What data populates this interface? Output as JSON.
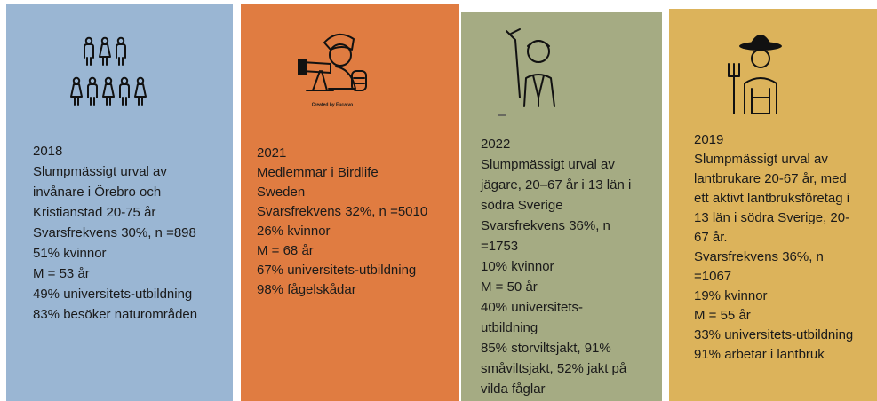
{
  "panels": [
    {
      "lines": [
        "2018",
        "Slumpmässigt urval av",
        "invånare i Örebro och",
        "Kristianstad 20-75 år",
        "Svarsfrekvens 30%, n =898",
        "51% kvinnor",
        "M = 53 år",
        "49% universitets-utbildning",
        "83% besöker naturområden"
      ]
    },
    {
      "credit": "Created by Eucalvo",
      "lines": [
        "2021",
        "Medlemmar i Birdlife",
        "Sweden",
        "Svarsfrekvens 32%, n =5010",
        "26% kvinnor",
        "M = 68 år",
        "67% universitets-utbildning",
        "98% fågelskådar"
      ]
    },
    {
      "lines": [
        "2022",
        "Slumpmässigt urval av",
        "jägare, 20–67 år i 13 län i",
        "södra Sverige",
        "Svarsfrekvens 36%, n",
        "=1753",
        "10% kvinnor",
        "M = 50 år",
        "40% universitets-",
        "utbildning",
        "85% storviltsjakt, 91%",
        "småviltsjakt, 52% jakt på",
        "vilda fåglar"
      ]
    },
    {
      "lines": [
        "2019",
        "Slumpmässigt urval av",
        "lantbrukare 20-67 år, med",
        "ett aktivt lantbruksföretag i",
        "13 län i södra Sverige, 20-",
        "67 år.",
        "Svarsfrekvens 36%, n",
        "=1067",
        "19% kvinnor",
        "M = 55 år",
        "33% universitets-utbildning",
        "91% arbetar i lantbruk"
      ]
    }
  ]
}
